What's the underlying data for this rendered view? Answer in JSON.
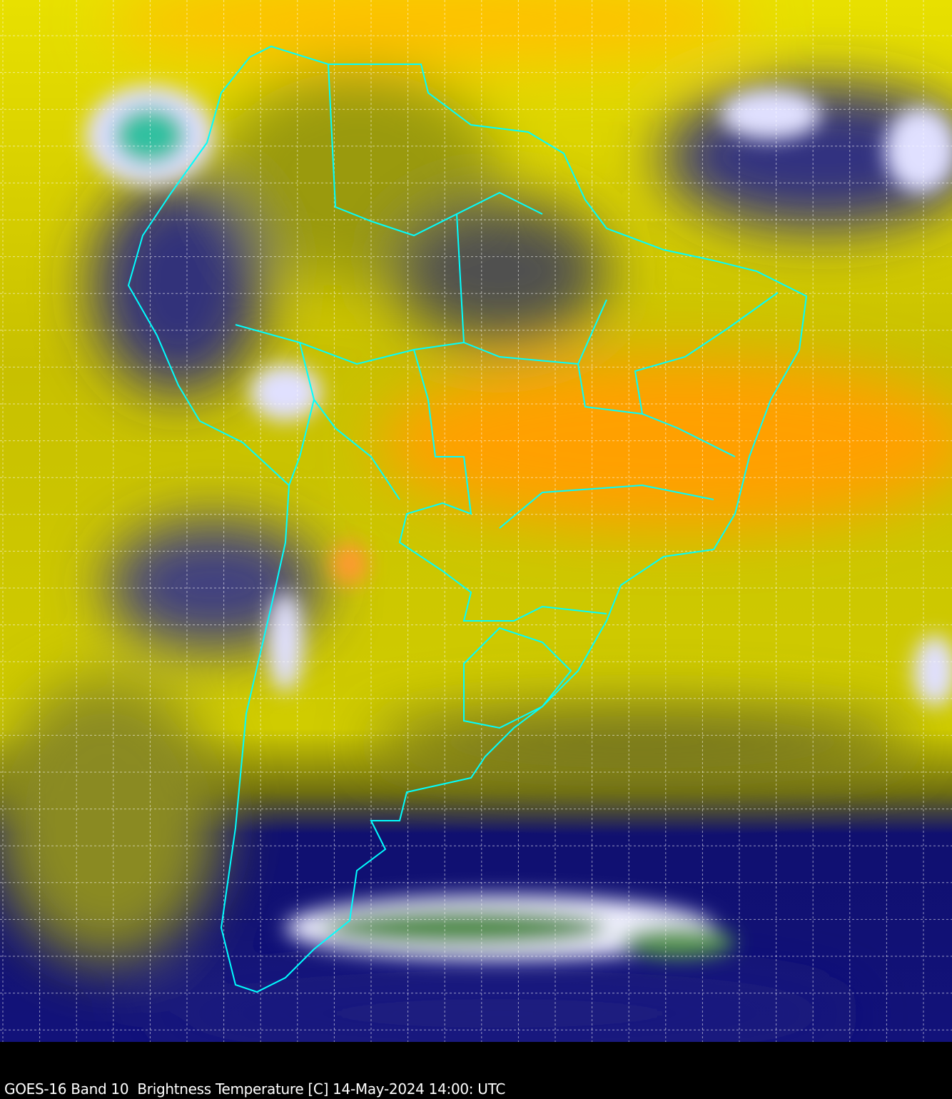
{
  "caption": "GOES-16 Band 10  Brightness Temperature [C] 14-May-2024 14:00: UTC",
  "colors": {
    "warm_dry": "#ffa500",
    "moist": "#ffff00",
    "mid": "#8a8a10",
    "cold": "#000080",
    "cloud_tops": "#ffffff",
    "coldest": "#3a7a30",
    "borders": "#00ffff",
    "grid": "#ffffff"
  }
}
